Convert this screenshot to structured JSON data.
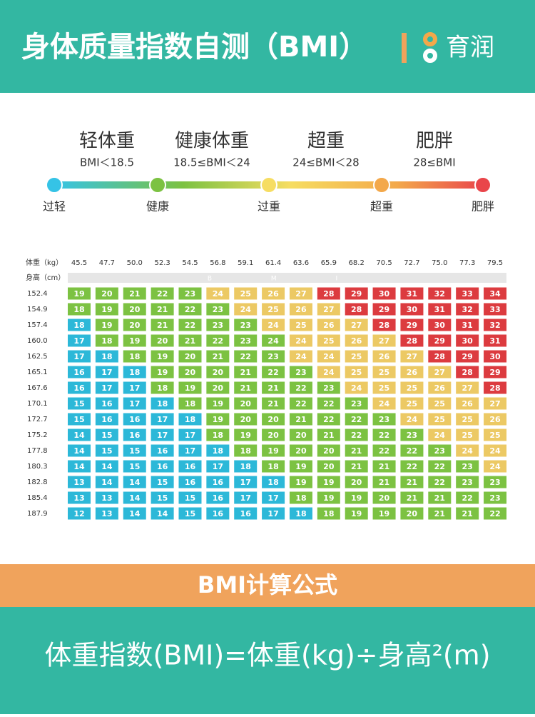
{
  "header": {
    "title": "身体质量指数自测（BMI）",
    "brand": "育润"
  },
  "levels": [
    {
      "name": "轻体重",
      "range": "BMI＜18.5",
      "from": 0,
      "color": "#2cb8d8"
    },
    {
      "name": "健康体重",
      "range": "18.5≤BMI＜24",
      "from": 18.5,
      "color": "#7cc242"
    },
    {
      "name": "超重",
      "range": "24≤BMI＜28",
      "from": 24,
      "color": "#ecc964"
    },
    {
      "name": "肥胖",
      "range": "28≤BMI",
      "from": 28,
      "color": "#dc3b3f"
    }
  ],
  "scale": [
    {
      "label": "过轻",
      "color": "#35c3e6"
    },
    {
      "label": "健康",
      "color": "#7cc242"
    },
    {
      "label": "过重",
      "color": "#f6dd62"
    },
    {
      "label": "超重",
      "color": "#f3a84a"
    },
    {
      "label": "肥胖",
      "color": "#e9454a"
    }
  ],
  "table": {
    "weight_label": "体重（kg）",
    "height_label": "身高（cm）",
    "bmi_label": "B M I",
    "weights": [
      45.5,
      47.7,
      {
        "value": 50,
        "label": "50.0"
      },
      52.3,
      54.5,
      56.8,
      59.1,
      61.4,
      63.6,
      65.9,
      68.2,
      70.5,
      72.7,
      {
        "value": 75,
        "label": "75.0"
      },
      77.3,
      79.5
    ],
    "heights": [
      152.4,
      154.9,
      157.4,
      {
        "value": 160,
        "label": "160.0"
      },
      162.5,
      165.1,
      167.6,
      170.1,
      172.7,
      175.2,
      177.8,
      180.3,
      182.8,
      185.4,
      187.9
    ],
    "rows": [
      [
        19,
        20,
        21,
        22,
        23,
        24,
        25,
        26,
        27,
        28,
        29,
        30,
        31,
        32,
        33,
        34
      ],
      [
        18,
        19,
        20,
        21,
        22,
        23,
        24,
        25,
        26,
        27,
        28,
        29,
        30,
        31,
        32,
        33
      ],
      [
        18,
        19,
        20,
        21,
        22,
        23,
        23,
        24,
        25,
        26,
        27,
        28,
        29,
        30,
        31,
        32
      ],
      [
        17,
        18,
        19,
        20,
        21,
        22,
        23,
        24,
        24,
        25,
        26,
        27,
        28,
        29,
        30,
        31
      ],
      [
        17,
        18,
        18,
        19,
        20,
        21,
        22,
        23,
        24,
        24,
        25,
        26,
        27,
        28,
        29,
        30
      ],
      [
        16,
        17,
        18,
        19,
        20,
        20,
        21,
        22,
        23,
        24,
        25,
        25,
        26,
        27,
        28,
        29
      ],
      [
        16,
        17,
        17,
        18,
        19,
        20,
        21,
        21,
        22,
        23,
        24,
        25,
        25,
        26,
        27,
        28
      ],
      [
        15,
        16,
        17,
        18,
        18,
        19,
        20,
        21,
        22,
        22,
        23,
        24,
        25,
        25,
        26,
        27
      ],
      [
        15,
        16,
        16,
        17,
        18,
        19,
        20,
        20,
        21,
        22,
        22,
        23,
        24,
        25,
        25,
        26
      ],
      [
        14,
        15,
        16,
        17,
        17,
        18,
        19,
        20,
        20,
        21,
        22,
        22,
        23,
        24,
        25,
        25
      ],
      [
        14,
        15,
        15,
        16,
        17,
        18,
        18,
        19,
        20,
        20,
        21,
        22,
        22,
        23,
        24,
        24
      ],
      [
        14,
        14,
        15,
        16,
        16,
        17,
        18,
        18,
        19,
        20,
        21,
        21,
        22,
        22,
        23,
        24
      ],
      [
        13,
        14,
        14,
        15,
        16,
        16,
        17,
        18,
        19,
        19,
        20,
        21,
        21,
        22,
        23,
        23
      ],
      [
        13,
        13,
        14,
        15,
        15,
        16,
        17,
        17,
        18,
        19,
        19,
        20,
        21,
        21,
        22,
        23
      ],
      [
        12,
        13,
        14,
        14,
        15,
        16,
        16,
        17,
        18,
        18,
        19,
        19,
        20,
        21,
        21,
        22
      ]
    ]
  },
  "formula": {
    "title": "BMI计算公式",
    "text": "体重指数(BMI)=体重(kg)÷身高²(m)"
  }
}
